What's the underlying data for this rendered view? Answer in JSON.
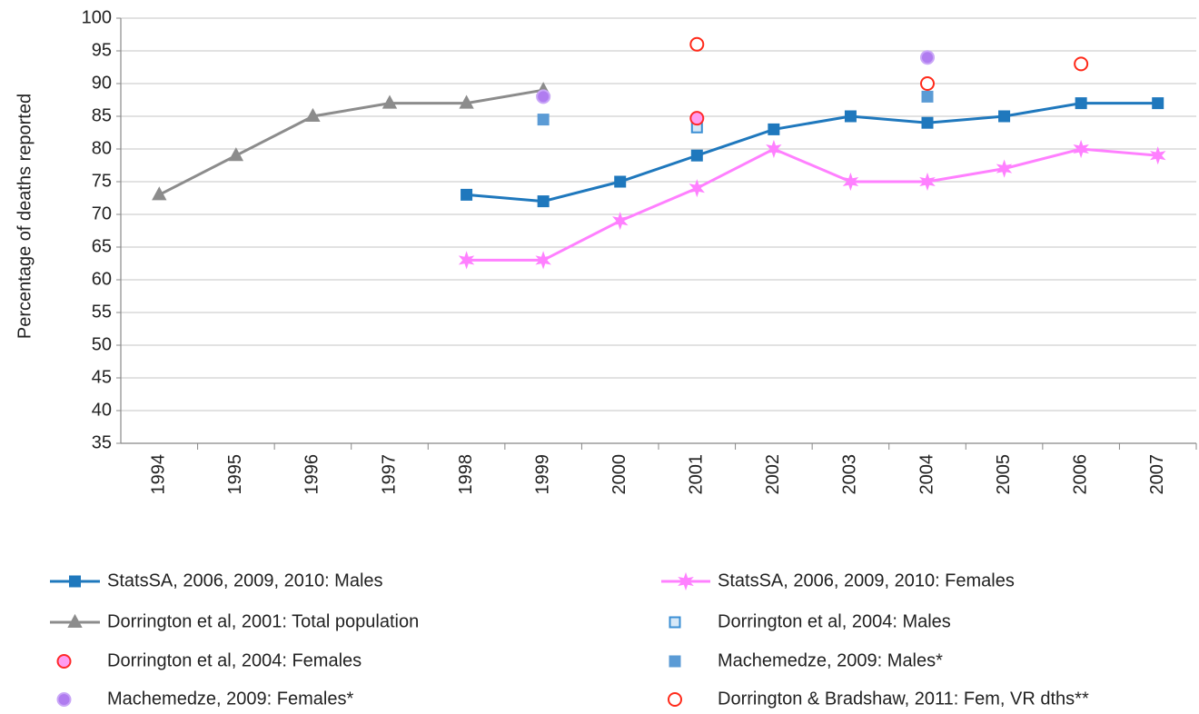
{
  "chart_data": {
    "type": "line",
    "y_label": "Percentage of deaths reported",
    "categories": [
      "1994",
      "1995",
      "1996",
      "1997",
      "1998",
      "1999",
      "2000",
      "2001",
      "2002",
      "2003",
      "2004",
      "2005",
      "2006",
      "2007"
    ],
    "ylim": [
      35,
      100
    ],
    "yticks": [
      35,
      40,
      45,
      50,
      55,
      60,
      65,
      70,
      75,
      80,
      85,
      90,
      95,
      100
    ],
    "grid": true,
    "legend": "bottom",
    "series": [
      {
        "name": "StatsSA, 2006, 2009, 2010: Males",
        "color": "#1f78bd",
        "line": true,
        "marker": {
          "shape": "square",
          "fill": "#1f78bd",
          "stroke": "#1f78bd"
        },
        "values": [
          null,
          null,
          null,
          null,
          73,
          72,
          75,
          79,
          83,
          85,
          84,
          85,
          87,
          87
        ]
      },
      {
        "name": "StatsSA, 2006, 2009, 2010: Females",
        "color": "#ff80ff",
        "line": true,
        "marker": {
          "shape": "star",
          "fill": "#ff80ff",
          "stroke": "#ff80ff"
        },
        "values": [
          null,
          null,
          null,
          null,
          63,
          63,
          69,
          74,
          80,
          75,
          75,
          77,
          80,
          79
        ]
      },
      {
        "name": "Dorrington et al, 2001: Total population",
        "color": "#8c8c8c",
        "line": true,
        "marker": {
          "shape": "triangle",
          "fill": "#8c8c8c",
          "stroke": "#8c8c8c"
        },
        "values": [
          73,
          79,
          85,
          87,
          87,
          89,
          null,
          null,
          null,
          null,
          null,
          null,
          null,
          null
        ]
      },
      {
        "name": "Dorrington et al, 2004: Males",
        "color": "#3b8fd4",
        "line": false,
        "marker": {
          "shape": "square",
          "fill": "#d6e8f7",
          "stroke": "#3b8fd4"
        },
        "values": [
          null,
          null,
          null,
          null,
          null,
          null,
          null,
          83.3,
          null,
          null,
          null,
          null,
          null,
          null
        ]
      },
      {
        "name": "Dorrington et al, 2004: Females",
        "color": "#ff2a2a",
        "line": false,
        "marker": {
          "shape": "circle",
          "fill": "#ff9cf0",
          "stroke": "#ff2a2a"
        },
        "values": [
          null,
          null,
          null,
          null,
          null,
          null,
          null,
          84.7,
          null,
          null,
          null,
          null,
          null,
          null
        ]
      },
      {
        "name": "Machemedze, 2009: Males*",
        "color": "#5b9bd5",
        "line": false,
        "marker": {
          "shape": "square",
          "fill": "#5b9bd5",
          "stroke": "#5b9bd5"
        },
        "values": [
          null,
          null,
          null,
          null,
          null,
          84.5,
          null,
          null,
          null,
          null,
          88,
          null,
          null,
          null
        ]
      },
      {
        "name": "Machemedze, 2009: Females*",
        "color": "#b07cf0",
        "line": false,
        "marker": {
          "shape": "circle",
          "fill": "#b07cf0",
          "stroke": "#c9a6f7"
        },
        "values": [
          null,
          null,
          null,
          null,
          null,
          88,
          null,
          null,
          null,
          null,
          94,
          null,
          null,
          null
        ]
      },
      {
        "name": "Dorrington & Bradshaw, 2011: Fem, VR dths**",
        "color": "#ff2a1a",
        "line": false,
        "marker": {
          "shape": "circle",
          "fill": "#ffffff",
          "stroke": "#ff2a1a"
        },
        "values": [
          null,
          null,
          null,
          null,
          null,
          null,
          null,
          96,
          null,
          null,
          90,
          null,
          93,
          null
        ]
      }
    ]
  }
}
